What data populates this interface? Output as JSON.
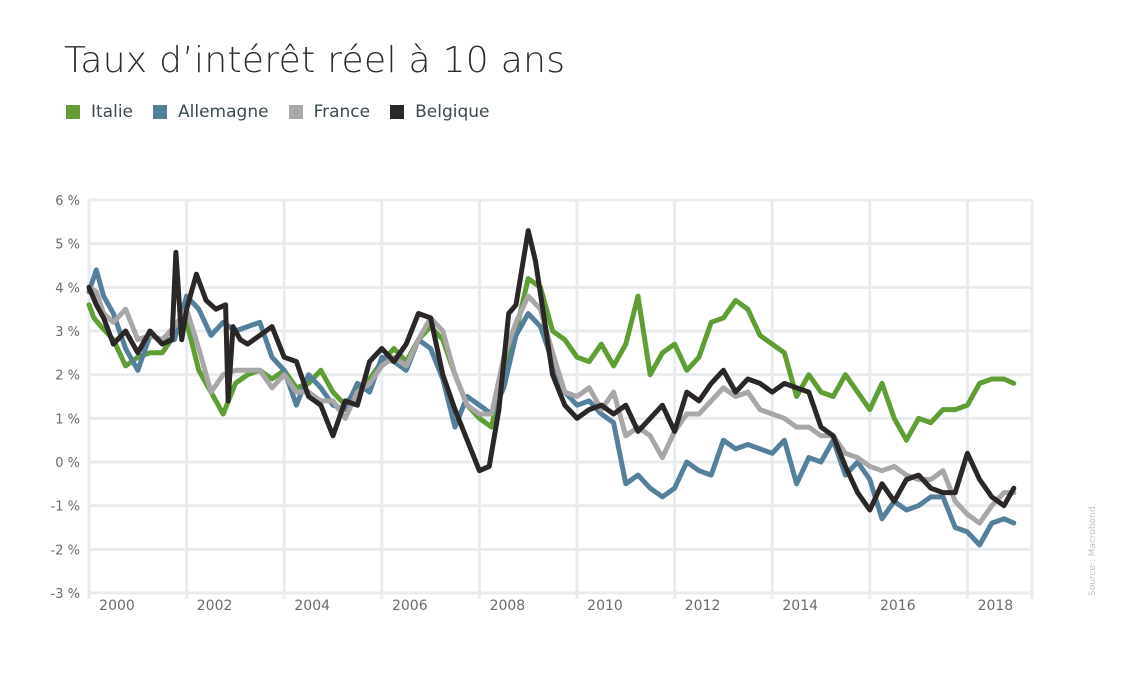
{
  "title": "Taux d’intérêt réel à 10 ans",
  "legend": [
    {
      "label": "Italie",
      "color": "#5f9e35"
    },
    {
      "label": "Allemagne",
      "color": "#55809b"
    },
    {
      "label": "France",
      "color": "#a8a6a6"
    },
    {
      "label": "Belgique",
      "color": "#2b2726"
    }
  ],
  "source": "Source : Macrobond",
  "chart_data": {
    "type": "line",
    "title": "Taux d’intérêt réel à 10 ans",
    "xlabel": "",
    "ylabel": "",
    "ylim": [
      -3,
      6
    ],
    "xlim": [
      2000,
      2019
    ],
    "grid": true,
    "legend_position": "top-left",
    "y_ticks": [
      "6 %",
      "5 %",
      "4 %",
      "3 %",
      "2 %",
      "1 %",
      "0 %",
      "-1 %",
      "-2 %",
      "-3 %"
    ],
    "x_ticks": [
      "2000",
      "2002",
      "2004",
      "2006",
      "2008",
      "2010",
      "2012",
      "2014",
      "2016",
      "2018"
    ],
    "series": [
      {
        "name": "Italie",
        "color": "#5f9e35",
        "x": [
          2000.0,
          2000.1,
          2000.25,
          2000.5,
          2000.75,
          2001.0,
          2001.25,
          2001.5,
          2001.75,
          2002.0,
          2002.25,
          2002.5,
          2002.75,
          2003.0,
          2003.25,
          2003.5,
          2003.75,
          2004.0,
          2004.25,
          2004.5,
          2004.75,
          2005.0,
          2005.25,
          2005.5,
          2005.75,
          2006.0,
          2006.25,
          2006.5,
          2006.75,
          2007.0,
          2007.25,
          2007.5,
          2007.75,
          2008.0,
          2008.25,
          2008.5,
          2008.75,
          2009.0,
          2009.25,
          2009.5,
          2009.75,
          2010.0,
          2010.25,
          2010.5,
          2010.75,
          2011.0,
          2011.25,
          2011.5,
          2011.75,
          2012.0,
          2012.25,
          2012.5,
          2012.75,
          2013.0,
          2013.25,
          2013.5,
          2013.75,
          2014.0,
          2014.25,
          2014.5,
          2014.75,
          2015.0,
          2015.25,
          2015.5,
          2015.75,
          2016.0,
          2016.25,
          2016.5,
          2016.75,
          2017.0,
          2017.25,
          2017.5,
          2017.75,
          2018.0,
          2018.25,
          2018.5,
          2018.75,
          2018.95
        ],
        "values": [
          3.6,
          3.3,
          3.1,
          2.8,
          2.2,
          2.4,
          2.5,
          2.5,
          2.9,
          3.2,
          2.1,
          1.6,
          1.1,
          1.8,
          2.0,
          2.1,
          1.9,
          2.1,
          1.7,
          1.8,
          2.1,
          1.6,
          1.3,
          1.7,
          1.9,
          2.3,
          2.6,
          2.3,
          2.8,
          3.1,
          2.8,
          2.0,
          1.3,
          1.0,
          0.8,
          2.2,
          3.0,
          4.2,
          4.0,
          3.0,
          2.8,
          2.4,
          2.3,
          2.7,
          2.2,
          2.7,
          3.8,
          2.0,
          2.5,
          2.7,
          2.1,
          2.4,
          3.2,
          3.3,
          3.7,
          3.5,
          2.9,
          2.7,
          2.5,
          1.5,
          2.0,
          1.6,
          1.5,
          2.0,
          1.6,
          1.2,
          1.8,
          1.0,
          0.5,
          1.0,
          0.9,
          1.2,
          1.2,
          1.3,
          1.8,
          1.9,
          1.9,
          1.8
        ]
      },
      {
        "name": "Allemagne",
        "color": "#55809b",
        "x": [
          2000.0,
          2000.15,
          2000.3,
          2000.5,
          2000.75,
          2001.0,
          2001.25,
          2001.5,
          2001.75,
          2002.0,
          2002.25,
          2002.5,
          2002.75,
          2003.0,
          2003.25,
          2003.5,
          2003.75,
          2004.0,
          2004.25,
          2004.5,
          2004.75,
          2005.0,
          2005.25,
          2005.5,
          2005.75,
          2006.0,
          2006.25,
          2006.5,
          2006.75,
          2007.0,
          2007.25,
          2007.5,
          2007.75,
          2008.0,
          2008.25,
          2008.5,
          2008.75,
          2009.0,
          2009.25,
          2009.5,
          2009.75,
          2010.0,
          2010.25,
          2010.5,
          2010.75,
          2011.0,
          2011.25,
          2011.5,
          2011.75,
          2012.0,
          2012.25,
          2012.5,
          2012.75,
          2013.0,
          2013.25,
          2013.5,
          2013.75,
          2014.0,
          2014.25,
          2014.5,
          2014.75,
          2015.0,
          2015.25,
          2015.5,
          2015.75,
          2016.0,
          2016.25,
          2016.5,
          2016.75,
          2017.0,
          2017.25,
          2017.5,
          2017.75,
          2018.0,
          2018.25,
          2018.5,
          2018.75,
          2018.95
        ],
        "values": [
          3.9,
          4.4,
          3.8,
          3.4,
          2.6,
          2.1,
          2.9,
          2.8,
          2.8,
          3.8,
          3.5,
          2.9,
          3.2,
          3.0,
          3.1,
          3.2,
          2.4,
          2.1,
          1.3,
          2.0,
          1.7,
          1.3,
          1.2,
          1.8,
          1.6,
          2.4,
          2.3,
          2.1,
          2.8,
          2.6,
          1.9,
          0.8,
          1.5,
          1.3,
          1.1,
          1.7,
          2.9,
          3.4,
          3.1,
          2.3,
          1.6,
          1.3,
          1.4,
          1.1,
          0.9,
          -0.5,
          -0.3,
          -0.6,
          -0.8,
          -0.6,
          0.0,
          -0.2,
          -0.3,
          0.5,
          0.3,
          0.4,
          0.3,
          0.2,
          0.5,
          -0.5,
          0.1,
          0.0,
          0.5,
          -0.3,
          0.0,
          -0.4,
          -1.3,
          -0.9,
          -1.1,
          -1.0,
          -0.8,
          -0.8,
          -1.5,
          -1.6,
          -1.9,
          -1.4,
          -1.3,
          -1.4
        ]
      },
      {
        "name": "France",
        "color": "#a8a6a6",
        "x": [
          2000.0,
          2000.15,
          2000.3,
          2000.5,
          2000.75,
          2001.0,
          2001.25,
          2001.5,
          2001.75,
          2002.0,
          2002.25,
          2002.5,
          2002.75,
          2003.0,
          2003.25,
          2003.5,
          2003.75,
          2004.0,
          2004.25,
          2004.5,
          2004.75,
          2005.0,
          2005.25,
          2005.5,
          2005.75,
          2006.0,
          2006.25,
          2006.5,
          2006.75,
          2007.0,
          2007.25,
          2007.5,
          2007.75,
          2008.0,
          2008.25,
          2008.5,
          2008.75,
          2009.0,
          2009.25,
          2009.5,
          2009.75,
          2010.0,
          2010.25,
          2010.5,
          2010.75,
          2011.0,
          2011.25,
          2011.5,
          2011.75,
          2012.0,
          2012.25,
          2012.5,
          2012.75,
          2013.0,
          2013.25,
          2013.5,
          2013.75,
          2014.0,
          2014.25,
          2014.5,
          2014.75,
          2015.0,
          2015.25,
          2015.5,
          2015.75,
          2016.0,
          2016.25,
          2016.5,
          2016.75,
          2017.0,
          2017.25,
          2017.5,
          2017.75,
          2018.0,
          2018.25,
          2018.5,
          2018.75,
          2018.95
        ],
        "values": [
          4.0,
          3.9,
          3.4,
          3.2,
          3.5,
          2.8,
          2.9,
          2.8,
          3.1,
          3.5,
          2.6,
          1.6,
          2.0,
          2.1,
          2.1,
          2.1,
          1.7,
          2.0,
          1.6,
          1.6,
          1.4,
          1.4,
          1.0,
          1.6,
          1.8,
          2.2,
          2.4,
          2.2,
          2.8,
          3.3,
          3.0,
          2.0,
          1.3,
          1.1,
          1.1,
          2.4,
          3.2,
          3.8,
          3.5,
          2.5,
          1.6,
          1.5,
          1.7,
          1.2,
          1.6,
          0.6,
          0.8,
          0.6,
          0.1,
          0.7,
          1.1,
          1.1,
          1.4,
          1.7,
          1.5,
          1.6,
          1.2,
          1.1,
          1.0,
          0.8,
          0.8,
          0.6,
          0.6,
          0.2,
          0.1,
          -0.1,
          -0.2,
          -0.1,
          -0.3,
          -0.4,
          -0.4,
          -0.2,
          -0.9,
          -1.2,
          -1.4,
          -1.0,
          -0.7,
          -0.7
        ]
      },
      {
        "name": "Belgique",
        "color": "#2b2726",
        "x": [
          2000.0,
          2000.15,
          2000.3,
          2000.5,
          2000.75,
          2001.0,
          2001.25,
          2001.5,
          2001.7,
          2001.78,
          2001.9,
          2002.0,
          2002.2,
          2002.4,
          2002.6,
          2002.8,
          2002.85,
          2002.95,
          2003.1,
          2003.25,
          2003.5,
          2003.75,
          2004.0,
          2004.25,
          2004.5,
          2004.75,
          2005.0,
          2005.25,
          2005.5,
          2005.75,
          2006.0,
          2006.25,
          2006.5,
          2006.75,
          2007.0,
          2007.25,
          2007.5,
          2007.75,
          2008.0,
          2008.2,
          2008.4,
          2008.6,
          2008.75,
          2009.0,
          2009.15,
          2009.3,
          2009.5,
          2009.75,
          2010.0,
          2010.25,
          2010.5,
          2010.75,
          2011.0,
          2011.25,
          2011.5,
          2011.75,
          2012.0,
          2012.25,
          2012.5,
          2012.75,
          2013.0,
          2013.25,
          2013.5,
          2013.75,
          2014.0,
          2014.25,
          2014.5,
          2014.75,
          2015.0,
          2015.25,
          2015.5,
          2015.75,
          2016.0,
          2016.25,
          2016.5,
          2016.75,
          2017.0,
          2017.25,
          2017.5,
          2017.75,
          2018.0,
          2018.25,
          2018.5,
          2018.75,
          2018.95
        ],
        "values": [
          4.0,
          3.6,
          3.3,
          2.7,
          3.0,
          2.5,
          3.0,
          2.7,
          2.8,
          4.8,
          2.8,
          3.5,
          4.3,
          3.7,
          3.5,
          3.6,
          1.4,
          3.1,
          2.8,
          2.7,
          2.9,
          3.1,
          2.4,
          2.3,
          1.5,
          1.3,
          0.6,
          1.4,
          1.3,
          2.3,
          2.6,
          2.3,
          2.7,
          3.4,
          3.3,
          2.0,
          1.2,
          0.5,
          -0.2,
          -0.1,
          1.2,
          3.4,
          3.6,
          5.3,
          4.6,
          3.5,
          2.0,
          1.3,
          1.0,
          1.2,
          1.3,
          1.1,
          1.3,
          0.7,
          1.0,
          1.3,
          0.7,
          1.6,
          1.4,
          1.8,
          2.1,
          1.6,
          1.9,
          1.8,
          1.6,
          1.8,
          1.7,
          1.6,
          0.8,
          0.6,
          -0.1,
          -0.7,
          -1.1,
          -0.5,
          -0.9,
          -0.4,
          -0.3,
          -0.6,
          -0.7,
          -0.7,
          0.2,
          -0.4,
          -0.8,
          -1.0,
          -0.6
        ]
      }
    ]
  }
}
